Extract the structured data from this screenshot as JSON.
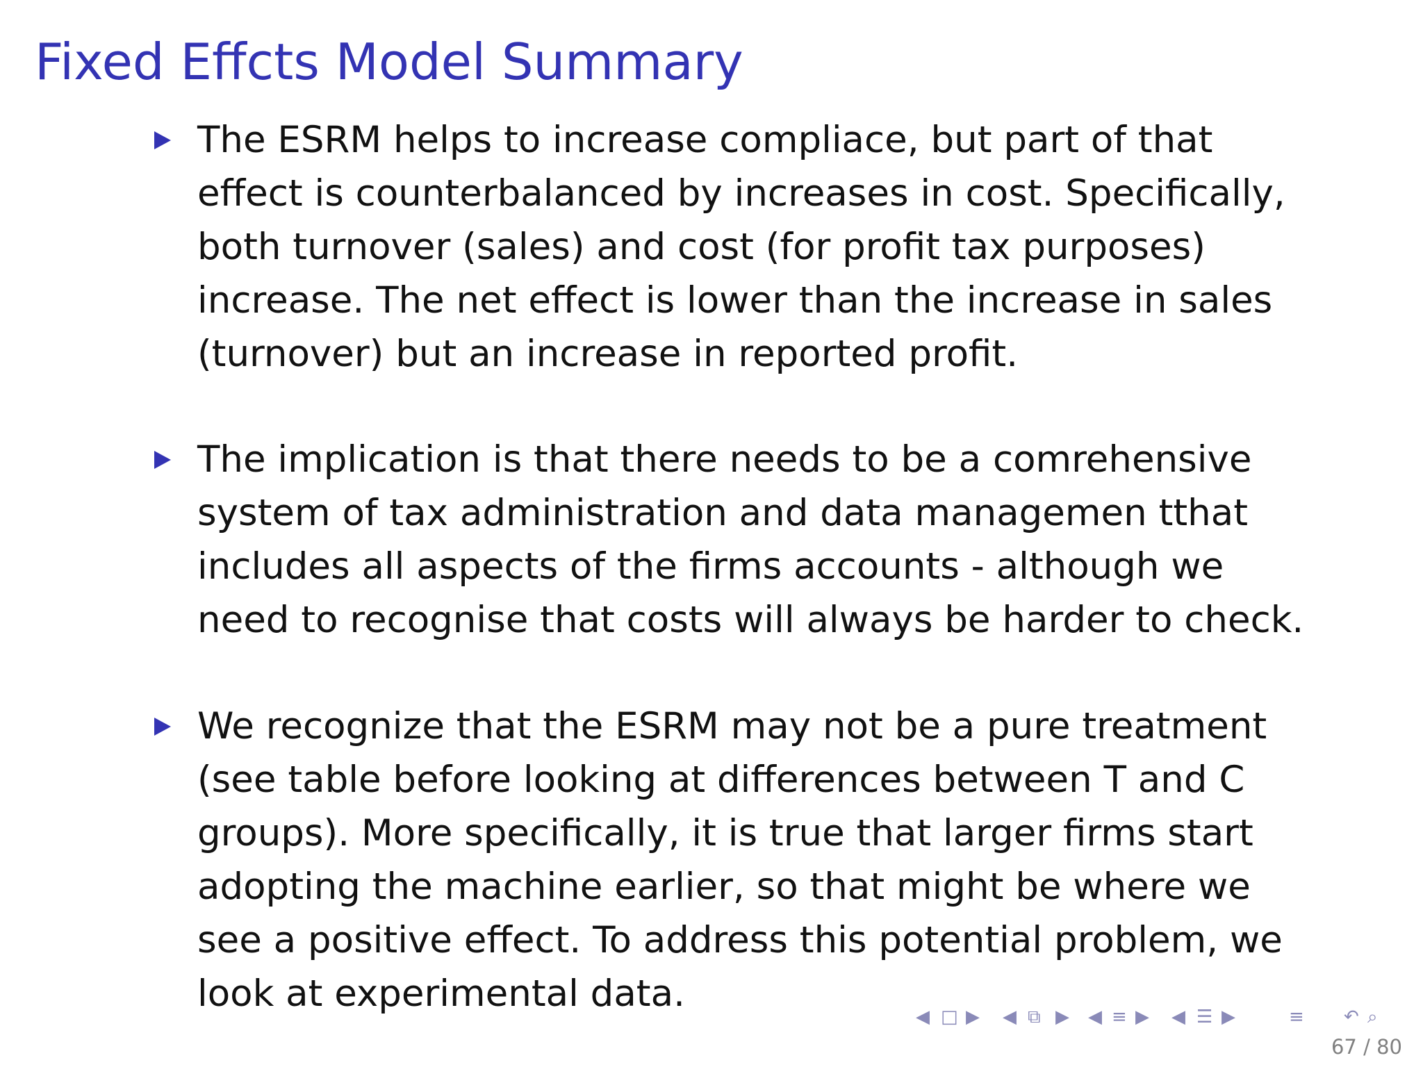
{
  "slide": {
    "title": "Fixed Effcts Model Summary",
    "bullets": [
      "The ESRM helps to increase compliace, but part of that effect is counterbalanced by increases in cost. Specifically, both turnover (sales) and cost (for profit tax purposes) increase. The net effect is lower than the increase in sales (turnover) but an increase in reported profit.",
      "The implication is that there needs to be a comrehensive system of tax administration and data managemen tthat includes all aspects of the firms accounts - although we need to recognise that costs will always be harder to check.",
      "We recognize that the ESRM may not be a pure treatment (see table before looking at differences between T and C groups). More specifically, it is true that larger firms start adopting the machine earlier, so that might be where we see a positive effect. To address this potential problem, we look at experimental data."
    ],
    "page_number": "67 / 80"
  },
  "navigation": {
    "icons": [
      "nav-prev-arrow-icon",
      "nav-frame-icon",
      "nav-next-arrow-icon",
      "nav-prev-arrow-icon",
      "nav-subsection-icon",
      "nav-next-arrow-icon",
      "nav-prev-arrow-icon",
      "nav-section-icon",
      "nav-next-arrow-icon",
      "nav-prev-arrow-icon",
      "nav-outline-icon",
      "nav-next-arrow-icon",
      "nav-menu-icon",
      "nav-search-icon",
      "nav-zoom-icon"
    ],
    "colors": {
      "title": "#3333b3",
      "text": "#111111",
      "nav": "#8a8ab8"
    }
  }
}
